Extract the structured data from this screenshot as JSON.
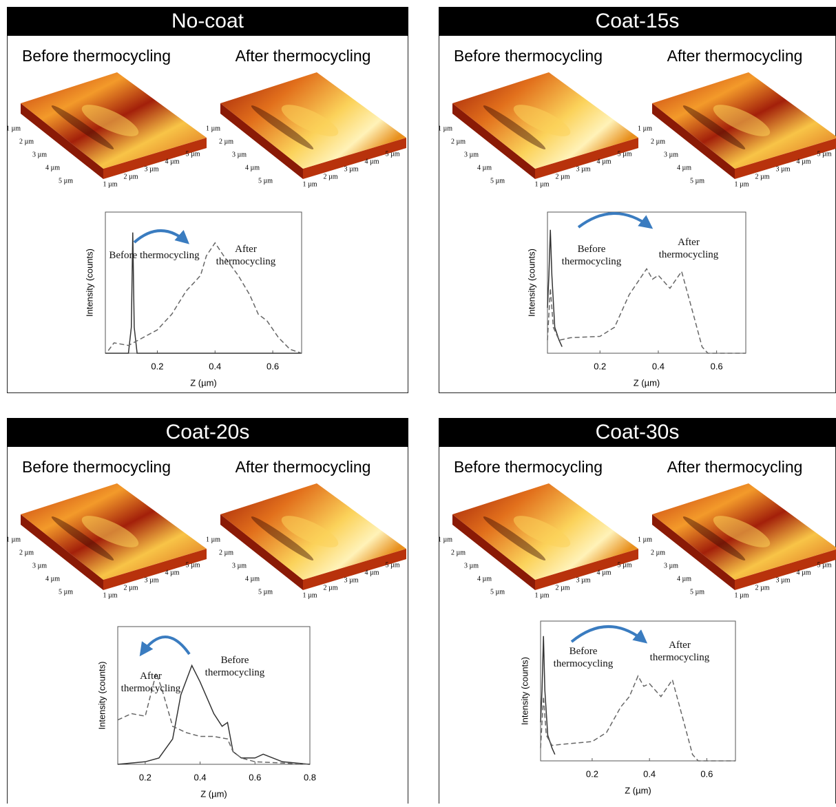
{
  "chart_data": [
    {
      "type": "line",
      "title": "No-coat",
      "subtitles": [
        "Before thermocycling",
        "After thermocycling"
      ],
      "surface_axis_labels": [
        "1 µm",
        "2 µm",
        "3 µm",
        "4 µm",
        "5 µm"
      ],
      "x_label": "Z (µm)",
      "y_label": "Intensity (counts)",
      "xlim": [
        0.02,
        0.7
      ],
      "xticks": [
        0.2,
        0.4,
        0.6
      ],
      "ylim": [
        0,
        100
      ],
      "series": [
        {
          "name": "Before thermocycling",
          "color": "#333333",
          "line_style": "solid",
          "x": [
            0.02,
            0.1,
            0.11,
            0.115,
            0.12,
            0.13,
            0.7
          ],
          "values": [
            0,
            0,
            20,
            93,
            20,
            0,
            0
          ]
        },
        {
          "name": "After thermocycling",
          "color": "#666666",
          "line_style": "dashed",
          "x": [
            0.03,
            0.05,
            0.1,
            0.15,
            0.2,
            0.25,
            0.3,
            0.33,
            0.35,
            0.37,
            0.4,
            0.43,
            0.48,
            0.52,
            0.55,
            0.58,
            0.62,
            0.66,
            0.7
          ],
          "values": [
            2,
            8,
            6,
            12,
            18,
            30,
            48,
            55,
            60,
            75,
            85,
            75,
            60,
            45,
            30,
            25,
            12,
            3,
            0
          ]
        }
      ]
    },
    {
      "type": "line",
      "title": "Coat-15s",
      "subtitles": [
        "Before thermocycling",
        "After thermocycling"
      ],
      "surface_axis_labels": [
        "1 µm",
        "2 µm",
        "3 µm",
        "4 µm",
        "5 µm"
      ],
      "x_label": "Z (µm)",
      "y_label": "Intensity (counts)",
      "xlim": [
        0.02,
        0.7
      ],
      "xticks": [
        0.2,
        0.4,
        0.6
      ],
      "ylim": [
        0,
        100
      ],
      "series": [
        {
          "name": "Before thermocycling",
          "color": "#333333",
          "line_style": "solid",
          "x": [
            0.02,
            0.025,
            0.03,
            0.035,
            0.045,
            0.06,
            0.07
          ],
          "values": [
            35,
            60,
            95,
            60,
            20,
            10,
            5
          ]
        },
        {
          "name": "After thermocycling",
          "color": "#666666",
          "line_style": "dashed",
          "x": [
            0.02,
            0.03,
            0.04,
            0.06,
            0.1,
            0.2,
            0.25,
            0.3,
            0.33,
            0.36,
            0.38,
            0.4,
            0.44,
            0.48,
            0.52,
            0.55,
            0.57,
            0.7
          ],
          "values": [
            10,
            50,
            20,
            10,
            12,
            13,
            20,
            45,
            55,
            65,
            57,
            60,
            50,
            63,
            30,
            5,
            0,
            0
          ]
        }
      ]
    },
    {
      "type": "line",
      "title": "Coat-20s",
      "subtitles": [
        "Before thermocycling",
        "After thermocycling"
      ],
      "surface_axis_labels": [
        "1 µm",
        "2 µm",
        "3 µm",
        "4 µm",
        "5 µm"
      ],
      "x_label": "Z (µm)",
      "y_label": "Intensity (counts)",
      "xlim": [
        0.1,
        0.8
      ],
      "xticks": [
        0.2,
        0.4,
        0.6,
        0.8
      ],
      "ylim": [
        0,
        100
      ],
      "series": [
        {
          "name": "Before thermocycling",
          "color": "#333333",
          "line_style": "solid",
          "x": [
            0.1,
            0.2,
            0.25,
            0.3,
            0.33,
            0.37,
            0.4,
            0.45,
            0.48,
            0.5,
            0.52,
            0.55,
            0.6,
            0.63,
            0.7,
            0.8
          ],
          "values": [
            0,
            2,
            5,
            20,
            55,
            78,
            65,
            40,
            30,
            33,
            10,
            5,
            5,
            8,
            2,
            0
          ]
        },
        {
          "name": "After thermocycling",
          "color": "#666666",
          "line_style": "dashed",
          "x": [
            0.1,
            0.15,
            0.2,
            0.24,
            0.26,
            0.3,
            0.35,
            0.4,
            0.45,
            0.5,
            0.52,
            0.55,
            0.6,
            0.8
          ],
          "values": [
            35,
            40,
            38,
            72,
            60,
            30,
            25,
            22,
            22,
            20,
            10,
            5,
            2,
            0
          ]
        }
      ]
    },
    {
      "type": "line",
      "title": "Coat-30s",
      "subtitles": [
        "Before thermocycling",
        "After thermocycling"
      ],
      "surface_axis_labels": [
        "1 µm",
        "2 µm",
        "3 µm",
        "4 µm",
        "5 µm"
      ],
      "x_label": "Z (µm)",
      "y_label": "Intensity (counts)",
      "xlim": [
        0.02,
        0.7
      ],
      "xticks": [
        0.2,
        0.4,
        0.6
      ],
      "ylim": [
        0,
        100
      ],
      "series": [
        {
          "name": "Before thermocycling",
          "color": "#333333",
          "line_style": "solid",
          "x": [
            0.02,
            0.025,
            0.03,
            0.035,
            0.045,
            0.06,
            0.07
          ],
          "values": [
            30,
            55,
            97,
            55,
            20,
            10,
            5
          ]
        },
        {
          "name": "After thermocycling",
          "color": "#666666",
          "line_style": "dashed",
          "x": [
            0.02,
            0.03,
            0.04,
            0.06,
            0.1,
            0.2,
            0.25,
            0.3,
            0.33,
            0.36,
            0.38,
            0.4,
            0.44,
            0.48,
            0.52,
            0.55,
            0.57,
            0.7
          ],
          "values": [
            10,
            50,
            20,
            12,
            13,
            15,
            22,
            42,
            50,
            66,
            58,
            60,
            50,
            63,
            30,
            5,
            0,
            0
          ]
        }
      ]
    }
  ]
}
